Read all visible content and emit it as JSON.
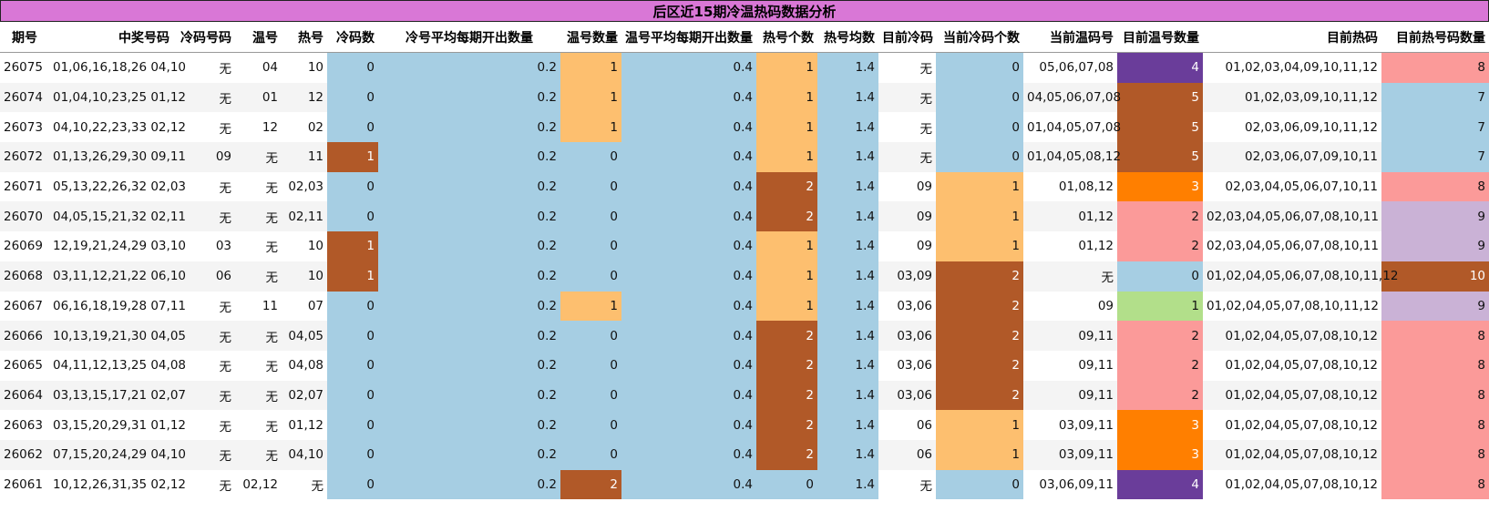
{
  "title": "后区近15期冷温热码数据分析",
  "headers": [
    "期号",
    "中奖号码",
    "冷码号码",
    "温号",
    "热号",
    "冷码数",
    "冷号平均每期开出数量",
    "温号数量",
    "温号平均每期开出数量",
    "热号个数",
    "热号均数",
    "目前冷码",
    "当前冷码个数",
    "当前温码号",
    "目前温号数量",
    "目前热码",
    "目前热号码数量"
  ],
  "rows": [
    {
      "id": "26075",
      "win": "01,06,16,18,26 04,10",
      "cold": "无",
      "warm": "04",
      "hot": "10",
      "cold_n": "0",
      "cold_avg": "0.2",
      "warm_n": "1",
      "warm_avg": "0.4",
      "hot_n": "1",
      "hot_avg": "1.4",
      "cur_cold": "无",
      "cur_cold_n": "0",
      "cur_warm": "05,06,07,08",
      "cur_warm_n": "4",
      "cur_hot": "01,02,03,04,09,10,11,12",
      "cur_hot_n": "8"
    },
    {
      "id": "26074",
      "win": "01,04,10,23,25 01,12",
      "cold": "无",
      "warm": "01",
      "hot": "12",
      "cold_n": "0",
      "cold_avg": "0.2",
      "warm_n": "1",
      "warm_avg": "0.4",
      "hot_n": "1",
      "hot_avg": "1.4",
      "cur_cold": "无",
      "cur_cold_n": "0",
      "cur_warm": "04,05,06,07,08",
      "cur_warm_n": "5",
      "cur_hot": "01,02,03,09,10,11,12",
      "cur_hot_n": "7"
    },
    {
      "id": "26073",
      "win": "04,10,22,23,33 02,12",
      "cold": "无",
      "warm": "12",
      "hot": "02",
      "cold_n": "0",
      "cold_avg": "0.2",
      "warm_n": "1",
      "warm_avg": "0.4",
      "hot_n": "1",
      "hot_avg": "1.4",
      "cur_cold": "无",
      "cur_cold_n": "0",
      "cur_warm": "01,04,05,07,08",
      "cur_warm_n": "5",
      "cur_hot": "02,03,06,09,10,11,12",
      "cur_hot_n": "7"
    },
    {
      "id": "26072",
      "win": "01,13,26,29,30 09,11",
      "cold": "09",
      "warm": "无",
      "hot": "11",
      "cold_n": "1",
      "cold_avg": "0.2",
      "warm_n": "0",
      "warm_avg": "0.4",
      "hot_n": "1",
      "hot_avg": "1.4",
      "cur_cold": "无",
      "cur_cold_n": "0",
      "cur_warm": "01,04,05,08,12",
      "cur_warm_n": "5",
      "cur_hot": "02,03,06,07,09,10,11",
      "cur_hot_n": "7"
    },
    {
      "id": "26071",
      "win": "05,13,22,26,32 02,03",
      "cold": "无",
      "warm": "无",
      "hot": "02,03",
      "cold_n": "0",
      "cold_avg": "0.2",
      "warm_n": "0",
      "warm_avg": "0.4",
      "hot_n": "2",
      "hot_avg": "1.4",
      "cur_cold": "09",
      "cur_cold_n": "1",
      "cur_warm": "01,08,12",
      "cur_warm_n": "3",
      "cur_hot": "02,03,04,05,06,07,10,11",
      "cur_hot_n": "8"
    },
    {
      "id": "26070",
      "win": "04,05,15,21,32 02,11",
      "cold": "无",
      "warm": "无",
      "hot": "02,11",
      "cold_n": "0",
      "cold_avg": "0.2",
      "warm_n": "0",
      "warm_avg": "0.4",
      "hot_n": "2",
      "hot_avg": "1.4",
      "cur_cold": "09",
      "cur_cold_n": "1",
      "cur_warm": "01,12",
      "cur_warm_n": "2",
      "cur_hot": "02,03,04,05,06,07,08,10,11",
      "cur_hot_n": "9"
    },
    {
      "id": "26069",
      "win": "12,19,21,24,29 03,10",
      "cold": "03",
      "warm": "无",
      "hot": "10",
      "cold_n": "1",
      "cold_avg": "0.2",
      "warm_n": "0",
      "warm_avg": "0.4",
      "hot_n": "1",
      "hot_avg": "1.4",
      "cur_cold": "09",
      "cur_cold_n": "1",
      "cur_warm": "01,12",
      "cur_warm_n": "2",
      "cur_hot": "02,03,04,05,06,07,08,10,11",
      "cur_hot_n": "9"
    },
    {
      "id": "26068",
      "win": "03,11,12,21,22 06,10",
      "cold": "06",
      "warm": "无",
      "hot": "10",
      "cold_n": "1",
      "cold_avg": "0.2",
      "warm_n": "0",
      "warm_avg": "0.4",
      "hot_n": "1",
      "hot_avg": "1.4",
      "cur_cold": "03,09",
      "cur_cold_n": "2",
      "cur_warm": "无",
      "cur_warm_n": "0",
      "cur_hot": "01,02,04,05,06,07,08,10,11,12",
      "cur_hot_n": "10"
    },
    {
      "id": "26067",
      "win": "06,16,18,19,28 07,11",
      "cold": "无",
      "warm": "11",
      "hot": "07",
      "cold_n": "0",
      "cold_avg": "0.2",
      "warm_n": "1",
      "warm_avg": "0.4",
      "hot_n": "1",
      "hot_avg": "1.4",
      "cur_cold": "03,06",
      "cur_cold_n": "2",
      "cur_warm": "09",
      "cur_warm_n": "1",
      "cur_hot": "01,02,04,05,07,08,10,11,12",
      "cur_hot_n": "9"
    },
    {
      "id": "26066",
      "win": "10,13,19,21,30 04,05",
      "cold": "无",
      "warm": "无",
      "hot": "04,05",
      "cold_n": "0",
      "cold_avg": "0.2",
      "warm_n": "0",
      "warm_avg": "0.4",
      "hot_n": "2",
      "hot_avg": "1.4",
      "cur_cold": "03,06",
      "cur_cold_n": "2",
      "cur_warm": "09,11",
      "cur_warm_n": "2",
      "cur_hot": "01,02,04,05,07,08,10,12",
      "cur_hot_n": "8"
    },
    {
      "id": "26065",
      "win": "04,11,12,13,25 04,08",
      "cold": "无",
      "warm": "无",
      "hot": "04,08",
      "cold_n": "0",
      "cold_avg": "0.2",
      "warm_n": "0",
      "warm_avg": "0.4",
      "hot_n": "2",
      "hot_avg": "1.4",
      "cur_cold": "03,06",
      "cur_cold_n": "2",
      "cur_warm": "09,11",
      "cur_warm_n": "2",
      "cur_hot": "01,02,04,05,07,08,10,12",
      "cur_hot_n": "8"
    },
    {
      "id": "26064",
      "win": "03,13,15,17,21 02,07",
      "cold": "无",
      "warm": "无",
      "hot": "02,07",
      "cold_n": "0",
      "cold_avg": "0.2",
      "warm_n": "0",
      "warm_avg": "0.4",
      "hot_n": "2",
      "hot_avg": "1.4",
      "cur_cold": "03,06",
      "cur_cold_n": "2",
      "cur_warm": "09,11",
      "cur_warm_n": "2",
      "cur_hot": "01,02,04,05,07,08,10,12",
      "cur_hot_n": "8"
    },
    {
      "id": "26063",
      "win": "03,15,20,29,31 01,12",
      "cold": "无",
      "warm": "无",
      "hot": "01,12",
      "cold_n": "0",
      "cold_avg": "0.2",
      "warm_n": "0",
      "warm_avg": "0.4",
      "hot_n": "2",
      "hot_avg": "1.4",
      "cur_cold": "06",
      "cur_cold_n": "1",
      "cur_warm": "03,09,11",
      "cur_warm_n": "3",
      "cur_hot": "01,02,04,05,07,08,10,12",
      "cur_hot_n": "8"
    },
    {
      "id": "26062",
      "win": "07,15,20,24,29 04,10",
      "cold": "无",
      "warm": "无",
      "hot": "04,10",
      "cold_n": "0",
      "cold_avg": "0.2",
      "warm_n": "0",
      "warm_avg": "0.4",
      "hot_n": "2",
      "hot_avg": "1.4",
      "cur_cold": "06",
      "cur_cold_n": "1",
      "cur_warm": "03,09,11",
      "cur_warm_n": "3",
      "cur_hot": "01,02,04,05,07,08,10,12",
      "cur_hot_n": "8"
    },
    {
      "id": "26061",
      "win": "10,12,26,31,35 02,12",
      "cold": "无",
      "warm": "02,12",
      "hot": "无",
      "cold_n": "0",
      "cold_avg": "0.2",
      "warm_n": "2",
      "warm_avg": "0.4",
      "hot_n": "0",
      "hot_avg": "1.4",
      "cur_cold": "无",
      "cur_cold_n": "0",
      "cur_warm": "03,06,09,11",
      "cur_warm_n": "4",
      "cur_hot": "01,02,04,05,07,08,10,12",
      "cur_hot_n": "8"
    }
  ],
  "cell_colors": {
    "blue": "#a6cee3",
    "light_orange": "#fdbf6f",
    "brown": "#b15928",
    "purple": "#6a3d9a",
    "light_purple": "#cab2d6",
    "pink": "#fb9a99",
    "dark_orange": "#ff7f00",
    "green": "#b2df8a",
    "title_bg": "#d977d6"
  }
}
